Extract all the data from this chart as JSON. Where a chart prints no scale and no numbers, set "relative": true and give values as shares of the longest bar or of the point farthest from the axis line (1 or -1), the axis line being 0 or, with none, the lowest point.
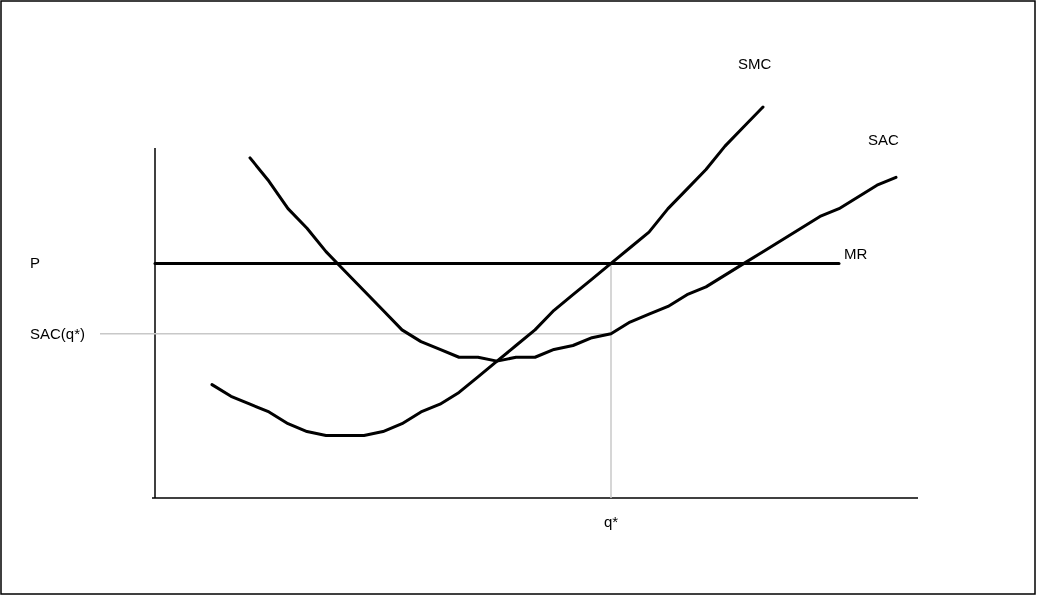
{
  "chart_data": {
    "type": "line",
    "relative": true,
    "line_style": "solid",
    "marker": "none",
    "categories": [
      null,
      null,
      null,
      null,
      null,
      null,
      null,
      null,
      null,
      null,
      null,
      null,
      null,
      null,
      null,
      null,
      null,
      null,
      null,
      null,
      null,
      null,
      null,
      null,
      null,
      null,
      null,
      null,
      null,
      null,
      null,
      null,
      null,
      null,
      null,
      null,
      null,
      null,
      null,
      null,
      null
    ],
    "series": [
      {
        "name": "SMC",
        "color": "#000000",
        "values": [
          null,
          null,
          null,
          0.29,
          0.26,
          0.24,
          0.22,
          0.19,
          0.17,
          0.16,
          0.16,
          0.16,
          0.17,
          0.19,
          0.22,
          0.24,
          0.27,
          0.31,
          0.35,
          0.39,
          0.43,
          0.48,
          0.52,
          0.56,
          0.6,
          0.64,
          0.68,
          0.74,
          0.79,
          0.84,
          0.9,
          0.95,
          1,
          null,
          null,
          null,
          null,
          null,
          null,
          null,
          null
        ]
      },
      {
        "name": "SAC",
        "color": "#000000",
        "values": [
          null,
          null,
          null,
          null,
          null,
          0.87,
          0.81,
          0.74,
          0.69,
          0.63,
          0.58,
          0.53,
          0.48,
          0.43,
          0.4,
          0.38,
          0.36,
          0.36,
          0.35,
          0.36,
          0.36,
          0.38,
          0.39,
          0.41,
          0.42,
          0.45,
          0.47,
          0.49,
          0.52,
          0.54,
          0.57,
          0.6,
          0.63,
          0.66,
          0.69,
          0.72,
          0.74,
          0.77,
          0.8,
          0.82,
          null
        ]
      },
      {
        "name": "MR",
        "color": "#000000",
        "values": [
          0.6,
          0.6,
          0.6,
          0.6,
          0.6,
          0.6,
          0.6,
          0.6,
          0.6,
          0.6,
          0.6,
          0.6,
          0.6,
          0.6,
          0.6,
          0.6,
          0.6,
          0.6,
          0.6,
          0.6,
          0.6,
          0.6,
          0.6,
          0.6,
          0.6,
          0.6,
          0.6,
          0.6,
          0.6,
          0.6,
          0.6,
          0.6,
          0.6,
          0.6,
          0.6,
          0.6,
          0.6,
          null,
          null,
          null,
          null
        ]
      }
    ],
    "ref_lines": [
      {
        "axis": "y",
        "value": 0.42,
        "label": "SAC(q*)",
        "color": "#c8c8c8"
      }
    ],
    "annotations": [
      "P",
      "q*"
    ],
    "grid": false,
    "legend": false
  }
}
